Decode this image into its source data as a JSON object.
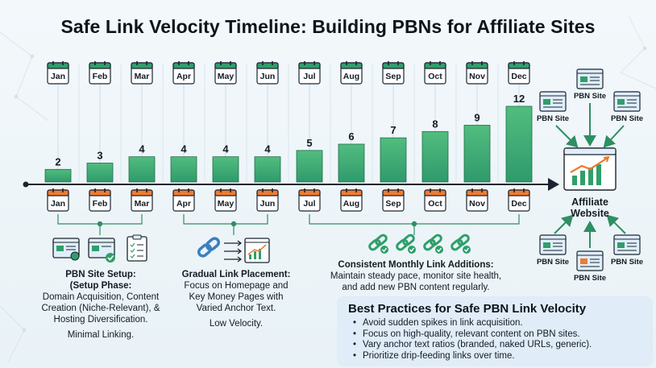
{
  "title": "Safe Link Velocity Timeline: Building PBNs for Affiliate Sites",
  "chart_data": {
    "type": "bar",
    "categories": [
      "Jan",
      "Feb",
      "Mar",
      "Apr",
      "May",
      "Jun",
      "Jul",
      "Aug",
      "Sep",
      "Oct",
      "Nov",
      "Dec"
    ],
    "values": [
      2,
      3,
      4,
      4,
      4,
      4,
      5,
      6,
      7,
      8,
      9,
      12
    ],
    "ylim": [
      0,
      12
    ]
  },
  "phases": [
    {
      "title": "PBN Site Setup:",
      "subtitle": "(Setup Phase:",
      "lines": [
        "Domain Acquisition, Content",
        "Creation (Niche-Relevant), &",
        "Hosting Diversification."
      ],
      "note": "Minimal Linking."
    },
    {
      "title": "Gradual Link Placement:",
      "lines": [
        "Focus on Homepage and",
        "Key Money Pages with",
        "Varied Anchor Text."
      ],
      "note": "Low Velocity."
    },
    {
      "title": "Consistent Monthly Link Additions:",
      "lines": [
        "Maintain steady pace, monitor site health,",
        "and add new PBN content regularly."
      ]
    }
  ],
  "network": {
    "target_label": "Affiliate Website",
    "pbn_label": "PBN Site"
  },
  "best_practices": {
    "title": "Best Practices for Safe PBN Link Velocity",
    "items": [
      "Avoid sudden spikes in link acquisition.",
      "Focus on high-quality, relevant content on PBN sites.",
      "Vary anchor text ratios (branded, naked URLs, generic).",
      "Prioritize drip-feeding links over time."
    ]
  },
  "colors": {
    "bar_top": "#49b57a",
    "bar_bottom": "#2f9f6a",
    "calendar_green": "#2f9f6a",
    "calendar_orange": "#ef7b2f",
    "axis": "#1b2430",
    "arrow": "#2e8f62"
  }
}
